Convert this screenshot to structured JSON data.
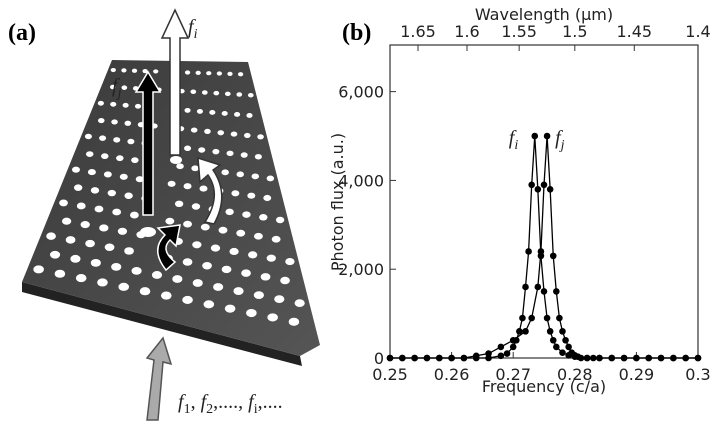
{
  "illustration": {
    "panel_label": "(a)",
    "output_label_white": [
      "f",
      "i"
    ],
    "output_label_black": [
      "f",
      "j"
    ],
    "input_label": [
      "f",
      "1",
      ", ",
      "f",
      "2",
      ",...., ",
      "f",
      "i",
      ",...."
    ]
  },
  "chart_data": {
    "type": "line",
    "panel_label": "(b)",
    "xlabel": "Frequency (c/a)",
    "ylabel": "Photon flux (a.u.)",
    "x2label": "Wavelength (μm)",
    "xlim": [
      0.25,
      0.3
    ],
    "xticks": [
      0.25,
      0.26,
      0.27,
      0.28,
      0.29,
      0.3
    ],
    "ylim": [
      0,
      7050
    ],
    "yticks": [
      0,
      {
        "value": 2000,
        "label": "2,000"
      },
      {
        "value": 4000,
        "label": "4,000"
      },
      {
        "value": 6000,
        "label": "6,000"
      }
    ],
    "x2lim": [
      1.68,
      1.4
    ],
    "x2scale": "reciprocal",
    "x2ticks": [
      1.65,
      1.6,
      1.55,
      1.5,
      1.45,
      1.4
    ],
    "markers": true,
    "series": [
      {
        "name": "f",
        "name_sub": "i",
        "color": "#000000",
        "x": [
          0.25,
          0.252,
          0.254,
          0.256,
          0.258,
          0.26,
          0.262,
          0.264,
          0.266,
          0.268,
          0.269,
          0.27,
          0.2705,
          0.271,
          0.2715,
          0.272,
          0.2725,
          0.273,
          0.2735,
          0.274,
          0.2745,
          0.275,
          0.2755,
          0.276,
          0.2765,
          0.277,
          0.278,
          0.279,
          0.28,
          0.282,
          0.284,
          0.286,
          0.288,
          0.29,
          0.292,
          0.294,
          0.296,
          0.298,
          0.3
        ],
        "values": [
          0,
          0,
          0,
          0,
          0,
          0,
          0,
          0,
          0,
          50,
          100,
          250,
          400,
          600,
          900,
          1600,
          2400,
          3900,
          5000,
          3800,
          2300,
          1500,
          900,
          600,
          400,
          250,
          120,
          60,
          30,
          0,
          0,
          0,
          0,
          0,
          0,
          0,
          0,
          0,
          0
        ]
      },
      {
        "name": "f",
        "name_sub": "j",
        "color": "#000000",
        "x": [
          0.25,
          0.252,
          0.254,
          0.256,
          0.258,
          0.26,
          0.262,
          0.264,
          0.266,
          0.268,
          0.27,
          0.272,
          0.273,
          0.274,
          0.2745,
          0.275,
          0.2755,
          0.276,
          0.2765,
          0.277,
          0.2775,
          0.278,
          0.2785,
          0.279,
          0.2795,
          0.28,
          0.2805,
          0.281,
          0.282,
          0.283,
          0.284,
          0.286,
          0.288,
          0.29,
          0.292,
          0.294,
          0.296,
          0.298,
          0.3
        ],
        "values": [
          0,
          0,
          0,
          0,
          0,
          0,
          0,
          50,
          100,
          250,
          400,
          600,
          900,
          1600,
          2400,
          3900,
          5000,
          3800,
          2300,
          1500,
          900,
          600,
          400,
          250,
          120,
          60,
          30,
          0,
          0,
          0,
          0,
          0,
          0,
          0,
          0,
          0,
          0,
          0,
          0
        ]
      }
    ]
  }
}
